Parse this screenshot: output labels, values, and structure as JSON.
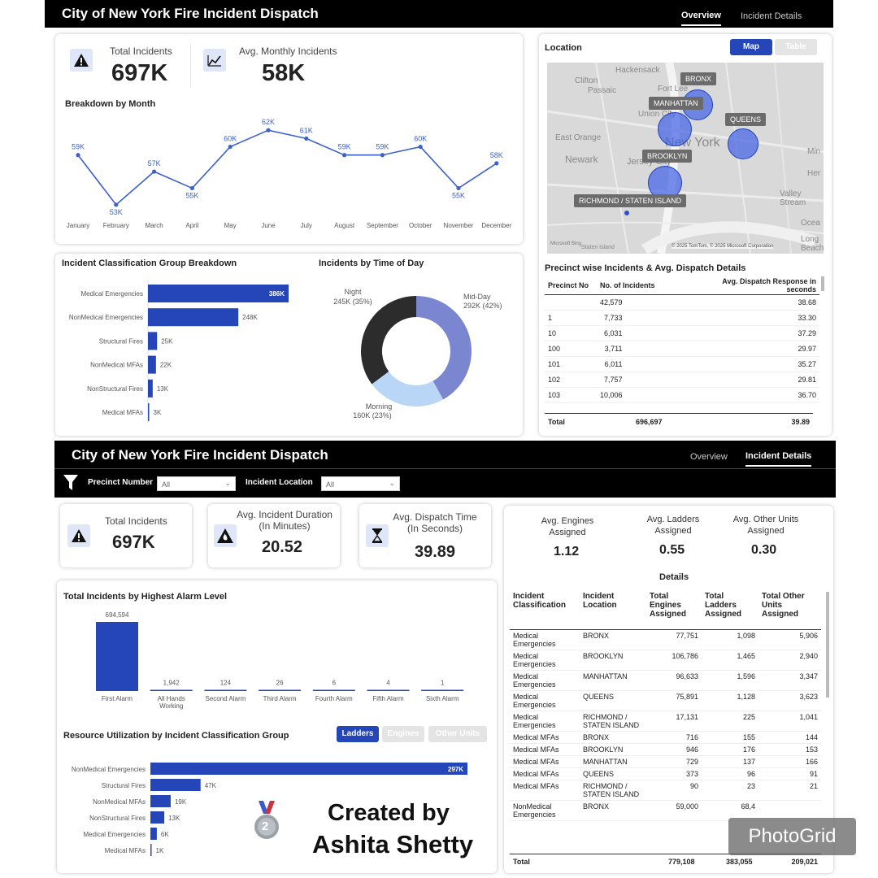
{
  "top": {
    "title": "City of New York Fire Incident Dispatch",
    "tabs": [
      {
        "label": "Overview",
        "active": true
      },
      {
        "label": "Incident Details",
        "active": false
      }
    ],
    "kpis": {
      "total_label": "Total Incidents",
      "total_value": "697K",
      "avg_label": "Avg. Monthly Incidents",
      "avg_value": "58K"
    },
    "month_chart": {
      "title": "Breakdown by Month",
      "chart_data": {
        "type": "line",
        "categories": [
          "January",
          "February",
          "March",
          "April",
          "May",
          "June",
          "July",
          "August",
          "September",
          "October",
          "November",
          "December"
        ],
        "values": [
          59,
          53,
          57,
          55,
          60,
          62,
          61,
          59,
          59,
          60,
          55,
          58
        ],
        "labels": [
          "59K",
          "53K",
          "57K",
          "55K",
          "60K",
          "62K",
          "61K",
          "59K",
          "59K",
          "60K",
          "55K",
          "58K"
        ],
        "color": "#3d62c9"
      }
    },
    "class_chart": {
      "title": "Incident Classification Group Breakdown",
      "chart_data": {
        "type": "bar",
        "categories": [
          "Medical Emergencies",
          "NonMedical Emergencies",
          "Structural Fires",
          "NonMedical MFAs",
          "NonStructural Fires",
          "Medical MFAs"
        ],
        "values": [
          386,
          248,
          25,
          22,
          13,
          3
        ],
        "labels": [
          "386K",
          "248K",
          "25K",
          "22K",
          "13K",
          "3K"
        ],
        "color": "#2446b8"
      }
    },
    "time_chart": {
      "title": "Incidents by Time of Day",
      "chart_data": {
        "type": "pie",
        "slices": [
          {
            "name": "Mid-Day",
            "value": 292,
            "label": "292K (42%)",
            "color": "#7a86cf"
          },
          {
            "name": "Morning",
            "value": 160,
            "label": "160K (23%)",
            "color": "#b9d6f7"
          },
          {
            "name": "Night",
            "value": 245,
            "label": "245K (35%)",
            "color": "#2c2c2c"
          }
        ]
      }
    },
    "location": {
      "title": "Location",
      "toggle": [
        "Map",
        "Table"
      ],
      "labels": [
        "BRONX",
        "MANHATTAN",
        "QUEENS",
        "BROOKLYN",
        "RICHMOND / STATEN ISLAND"
      ],
      "places": [
        "Hackensack",
        "Clifton",
        "Passaic",
        "Fort Lee",
        "Union City",
        "New York",
        "East Orange",
        "Newark",
        "Jersey City",
        "Valley Stream",
        "Ocea",
        "Long Beach",
        "Staten Island",
        "Min",
        "Her"
      ],
      "copyright": "© 2025 TomTom, © 2025 Microsoft Corporation",
      "ms_bing": "Microsoft Bing"
    },
    "precinct": {
      "title": "Precinct wise Incidents & Avg. Dispatch Details",
      "headers": [
        "Precinct No",
        "No. of Incidents",
        "Avg. Dispatch Response in seconds"
      ],
      "rows": [
        [
          "",
          "42,579",
          "38.68"
        ],
        [
          "1",
          "7,733",
          "33.30"
        ],
        [
          "10",
          "6,031",
          "37.29"
        ],
        [
          "100",
          "3,711",
          "29.97"
        ],
        [
          "101",
          "6,011",
          "35.27"
        ],
        [
          "102",
          "7,757",
          "29.81"
        ],
        [
          "103",
          "10,006",
          "36.70"
        ]
      ],
      "total": [
        "Total",
        "696,697",
        "39.89"
      ]
    }
  },
  "bottom": {
    "title": "City of New York Fire Incident Dispatch",
    "tabs": [
      {
        "label": "Overview",
        "active": false
      },
      {
        "label": "Incident Details",
        "active": true
      }
    ],
    "filters": {
      "precinct_label": "Precinct Number",
      "precinct_value": "All",
      "location_label": "Incident Location",
      "location_value": "All"
    },
    "kpis": {
      "total_label": "Total Incidents",
      "total_value": "697K",
      "duration_label": "Avg. Incident Duration (In Minutes)",
      "duration_value": "20.52",
      "dispatch_label": "Avg. Dispatch Time (In Seconds)",
      "dispatch_value": "39.89",
      "engines_label": "Avg. Engines Assigned",
      "engines_value": "1.12",
      "ladders_label": "Avg. Ladders Assigned",
      "ladders_value": "0.55",
      "other_label": "Avg. Other Units Assigned",
      "other_value": "0.30"
    },
    "alarm_chart": {
      "title": "Total Incidents by Highest Alarm Level",
      "chart_data": {
        "type": "bar",
        "categories": [
          "First Alarm",
          "All Hands Working",
          "Second Alarm",
          "Third Alarm",
          "Fourth Alarm",
          "Fifth Alarm",
          "Sixth Alarm"
        ],
        "values": [
          694594,
          1942,
          124,
          26,
          6,
          4,
          1
        ],
        "labels": [
          "694,594",
          "1,942",
          "124",
          "26",
          "6",
          "4",
          "1"
        ],
        "color": "#2446b8"
      }
    },
    "resource_chart": {
      "title": "Resource Utilization by Incident Classification Group",
      "toggle": [
        "Ladders",
        "Engines",
        "Other Units"
      ],
      "chart_data": {
        "type": "bar",
        "categories": [
          "NonMedical Emergencies",
          "Structural Fires",
          "NonMedical MFAs",
          "NonStructural Fires",
          "Medical Emergencies",
          "Medical MFAs"
        ],
        "values": [
          297,
          47,
          19,
          13,
          6,
          1
        ],
        "labels": [
          "297K",
          "47K",
          "19K",
          "13K",
          "6K",
          "1K"
        ],
        "color": "#2446b8"
      }
    },
    "credit": {
      "line1": "Created by",
      "line2": "Ashita Shetty",
      "medal": "2"
    },
    "details": {
      "title": "Details",
      "headers": [
        "Incident Classification",
        "Incident Location",
        "Total Engines Assigned",
        "Total Ladders Assigned",
        "Total Other Units Assigned"
      ],
      "rows": [
        [
          "Medical Emergencies",
          "BRONX",
          "77,751",
          "1,098",
          "5,906"
        ],
        [
          "Medical Emergencies",
          "BROOKLYN",
          "106,786",
          "1,465",
          "2,940"
        ],
        [
          "Medical Emergencies",
          "MANHATTAN",
          "96,633",
          "1,596",
          "3,347"
        ],
        [
          "Medical Emergencies",
          "QUEENS",
          "75,891",
          "1,128",
          "3,623"
        ],
        [
          "Medical Emergencies",
          "RICHMOND / STATEN ISLAND",
          "17,131",
          "225",
          "1,041"
        ],
        [
          "Medical MFAs",
          "BRONX",
          "716",
          "155",
          "144"
        ],
        [
          "Medical MFAs",
          "BROOKLYN",
          "946",
          "176",
          "153"
        ],
        [
          "Medical MFAs",
          "MANHATTAN",
          "729",
          "137",
          "166"
        ],
        [
          "Medical MFAs",
          "QUEENS",
          "373",
          "96",
          "91"
        ],
        [
          "Medical MFAs",
          "RICHMOND / STATEN ISLAND",
          "90",
          "23",
          "21"
        ],
        [
          "NonMedical Emergencies",
          "BRONX",
          "59,000",
          "68,4",
          ""
        ]
      ],
      "total": [
        "Total",
        "",
        "779,108",
        "383,055",
        "209,021"
      ]
    }
  },
  "watermark": "PhotoGrid"
}
